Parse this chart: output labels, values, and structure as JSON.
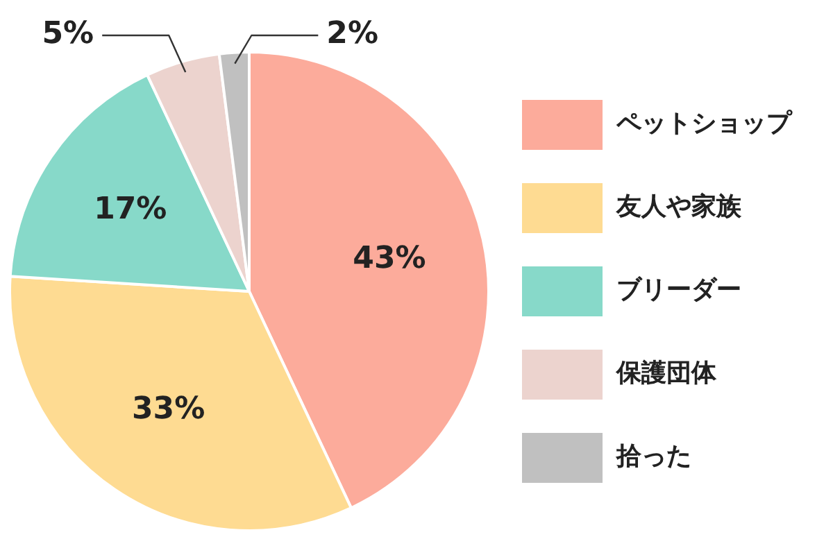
{
  "chart_data": {
    "type": "pie",
    "categories": [
      "ペットショップ",
      "友人や家族",
      "ブリーダー",
      "保護団体",
      "拾った"
    ],
    "values": [
      43,
      33,
      17,
      5,
      2
    ],
    "colors": [
      "#fcab9b",
      "#fedb92",
      "#87d9c9",
      "#ecd3ce",
      "#c0c0c0"
    ],
    "value_labels": [
      "43%",
      "33%",
      "17%",
      "5%",
      "2%"
    ],
    "legend": "right"
  }
}
